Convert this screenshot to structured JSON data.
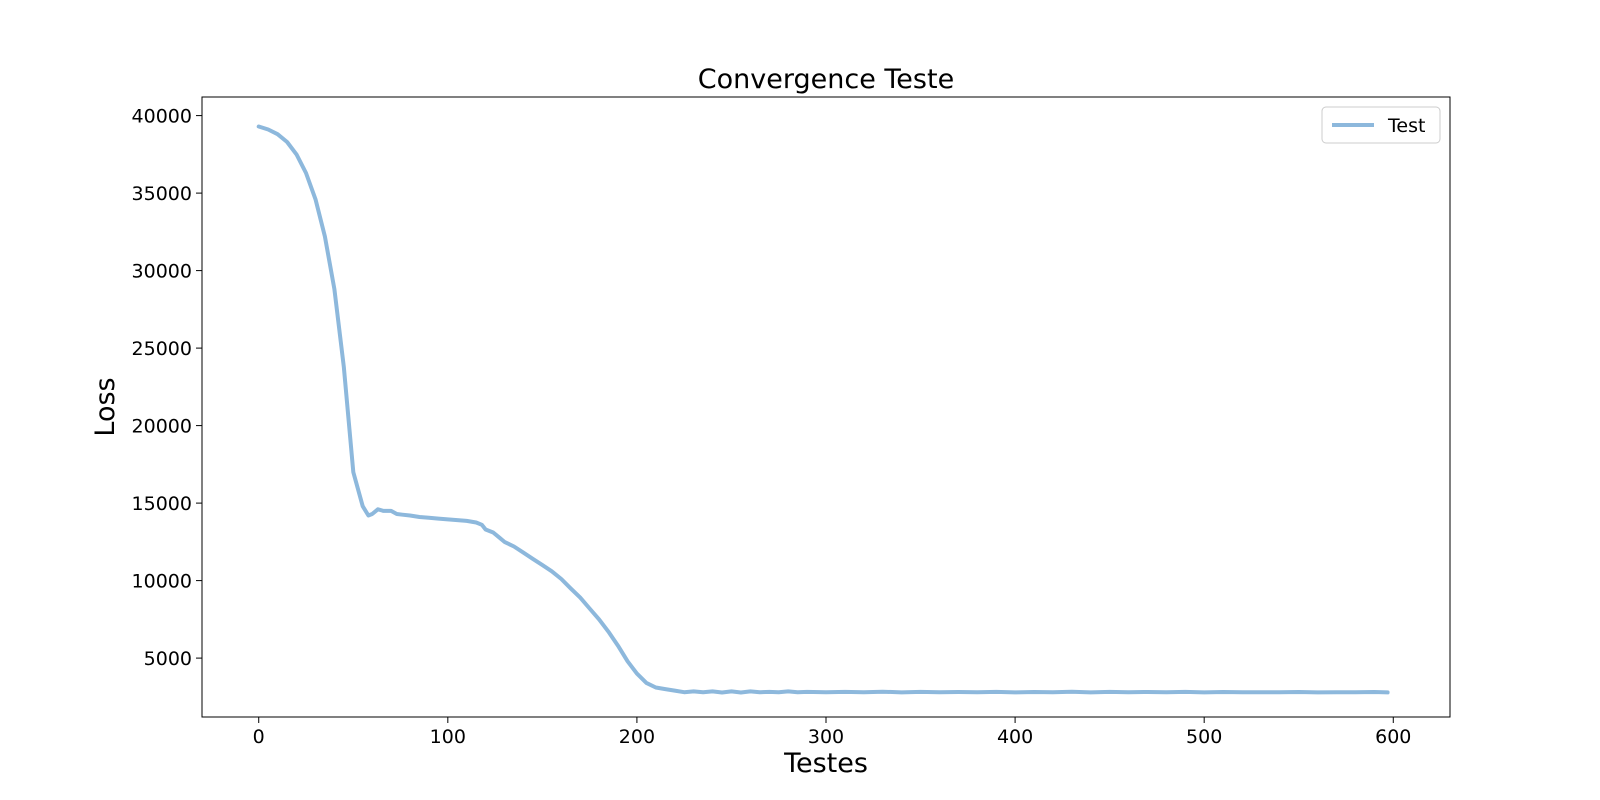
{
  "chart_data": {
    "type": "line",
    "title": "Convergence Teste",
    "xlabel": "Testes",
    "ylabel": "Loss",
    "xlim": [
      -30,
      630
    ],
    "ylim": [
      1200,
      41200
    ],
    "xticks": [
      0,
      100,
      200,
      300,
      400,
      500,
      600
    ],
    "yticks": [
      5000,
      10000,
      15000,
      20000,
      25000,
      30000,
      35000,
      40000
    ],
    "grid": false,
    "legend_position": "top-right",
    "series": [
      {
        "name": "Test",
        "color": "#8db8dc",
        "x": [
          0,
          5,
          10,
          15,
          20,
          25,
          30,
          35,
          40,
          45,
          50,
          55,
          58,
          60,
          63,
          66,
          70,
          73,
          76,
          80,
          85,
          90,
          95,
          100,
          105,
          110,
          115,
          118,
          120,
          124,
          127,
          130,
          135,
          140,
          145,
          150,
          155,
          160,
          165,
          170,
          175,
          180,
          185,
          190,
          195,
          200,
          205,
          210,
          215,
          220,
          225,
          230,
          235,
          240,
          245,
          250,
          255,
          260,
          265,
          270,
          275,
          280,
          285,
          290,
          300,
          310,
          320,
          330,
          340,
          350,
          360,
          370,
          380,
          390,
          400,
          410,
          420,
          430,
          440,
          450,
          460,
          470,
          480,
          490,
          500,
          510,
          520,
          530,
          540,
          550,
          560,
          570,
          580,
          590,
          597
        ],
        "y": [
          39300,
          39100,
          38800,
          38300,
          37500,
          36300,
          34600,
          32200,
          28800,
          23800,
          17000,
          14800,
          14200,
          14300,
          14600,
          14500,
          14500,
          14300,
          14250,
          14200,
          14100,
          14050,
          14000,
          13950,
          13900,
          13850,
          13750,
          13600,
          13300,
          13100,
          12800,
          12500,
          12200,
          11800,
          11400,
          11000,
          10600,
          10100,
          9500,
          8900,
          8200,
          7500,
          6700,
          5800,
          4800,
          4000,
          3400,
          3100,
          3000,
          2900,
          2800,
          2850,
          2800,
          2850,
          2780,
          2850,
          2780,
          2850,
          2800,
          2820,
          2800,
          2850,
          2800,
          2820,
          2800,
          2820,
          2800,
          2830,
          2790,
          2820,
          2800,
          2810,
          2800,
          2820,
          2790,
          2810,
          2800,
          2830,
          2790,
          2820,
          2800,
          2810,
          2800,
          2820,
          2790,
          2810,
          2800,
          2800,
          2800,
          2810,
          2790,
          2800,
          2800,
          2810,
          2790
        ]
      }
    ]
  }
}
